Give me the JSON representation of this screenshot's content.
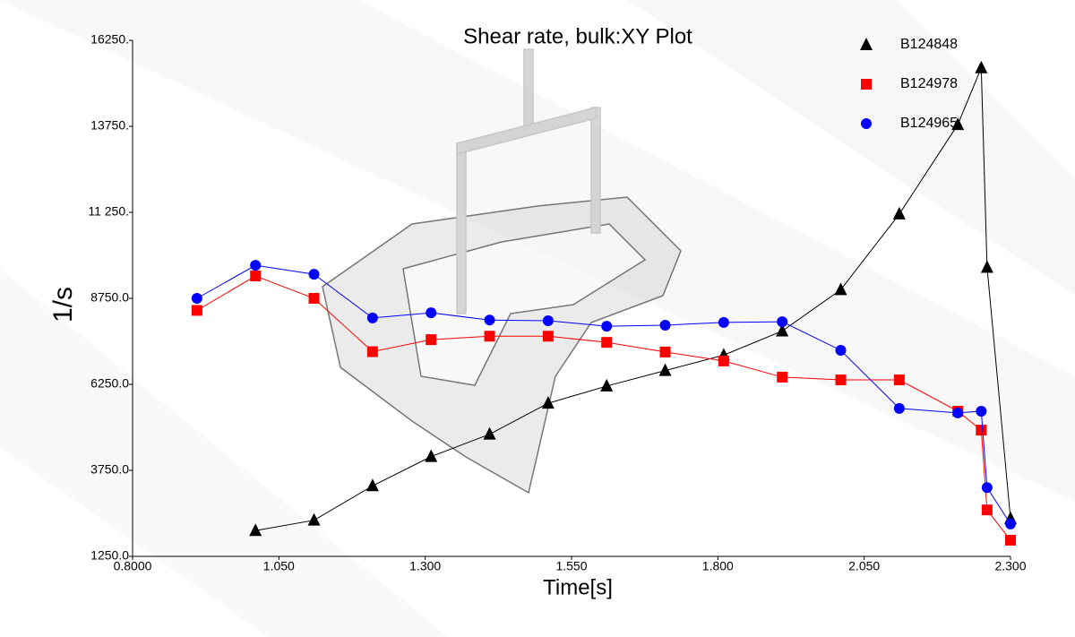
{
  "chart_data": {
    "type": "line",
    "title": "Shear rate, bulk:XY Plot",
    "x_label": "Time[s]",
    "y_label": "1/s",
    "xlim": [
      0.8,
      2.3
    ],
    "ylim": [
      1250,
      16250
    ],
    "xticks": [
      {
        "value": 0.8,
        "label": "0.8000"
      },
      {
        "value": 1.05,
        "label": "1.050"
      },
      {
        "value": 1.3,
        "label": "1.300"
      },
      {
        "value": 1.55,
        "label": "1.550"
      },
      {
        "value": 1.8,
        "label": "1.800"
      },
      {
        "value": 2.05,
        "label": "2.050"
      },
      {
        "value": 2.3,
        "label": "2.300"
      }
    ],
    "yticks": [
      {
        "value": 1250,
        "label": "1250.0"
      },
      {
        "value": 3750,
        "label": "3750.0"
      },
      {
        "value": 6250,
        "label": "6250.0"
      },
      {
        "value": 8750,
        "label": "8750.0"
      },
      {
        "value": 11250,
        "label": "11 250."
      },
      {
        "value": 13750,
        "label": "13750."
      },
      {
        "value": 16250,
        "label": "16250."
      }
    ],
    "grid": false,
    "legend": "top-right",
    "series": [
      {
        "name": "B124848",
        "color": "#000000",
        "marker": "triangle",
        "x": [
          1.01,
          1.11,
          1.21,
          1.31,
          1.41,
          1.51,
          1.61,
          1.71,
          1.81,
          1.91,
          2.01,
          2.11,
          2.21,
          2.25,
          2.26,
          2.3
        ],
        "values": [
          2000,
          2300,
          3300,
          4150,
          4800,
          5700,
          6200,
          6650,
          7100,
          7800,
          9000,
          11200,
          13800,
          15450,
          9650,
          2350
        ]
      },
      {
        "name": "B124978",
        "color": "#ff0000",
        "marker": "square",
        "x": [
          0.91,
          1.01,
          1.11,
          1.21,
          1.31,
          1.41,
          1.51,
          1.61,
          1.71,
          1.81,
          1.91,
          2.01,
          2.11,
          2.21,
          2.25,
          2.26,
          2.3
        ],
        "values": [
          8400,
          9400,
          8750,
          7200,
          7550,
          7650,
          7650,
          7470,
          7190,
          6930,
          6460,
          6380,
          6380,
          5470,
          4920,
          2600,
          1720
        ]
      },
      {
        "name": "B124965",
        "color": "#0000ff",
        "marker": "circle",
        "x": [
          0.91,
          1.01,
          1.11,
          1.21,
          1.31,
          1.41,
          1.51,
          1.61,
          1.71,
          1.81,
          1.91,
          2.01,
          2.11,
          2.21,
          2.25,
          2.26,
          2.3
        ],
        "values": [
          8750,
          9710,
          9450,
          8180,
          8330,
          8120,
          8100,
          7940,
          7970,
          8050,
          8070,
          7240,
          5550,
          5420,
          5470,
          3250,
          2190
        ]
      }
    ]
  }
}
